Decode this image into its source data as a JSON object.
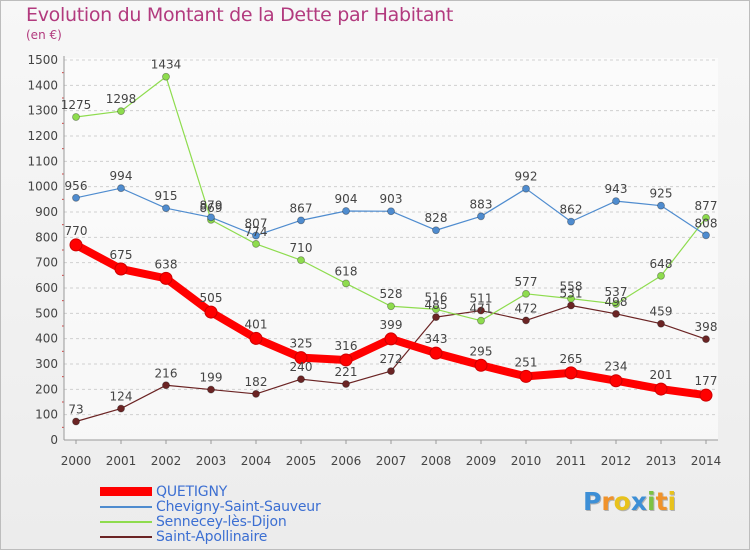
{
  "chart_data": {
    "type": "line",
    "title": "Evolution du Montant de la Dette par Habitant",
    "unit_label": "(en €)",
    "x": [
      "2000",
      "2001",
      "2002",
      "2003",
      "2004",
      "2005",
      "2006",
      "2007",
      "2008",
      "2009",
      "2010",
      "2011",
      "2012",
      "2013",
      "2014"
    ],
    "ylim": [
      0,
      1500
    ],
    "yticks": [
      0,
      100,
      200,
      300,
      400,
      500,
      600,
      700,
      800,
      900,
      1000,
      1100,
      1200,
      1300,
      1400,
      1500
    ],
    "grid": "horizontal dashed",
    "legend_position": "bottom-left",
    "series": [
      {
        "name": "QUETIGNY",
        "color": "#ff0000",
        "values": [
          770,
          675,
          638,
          505,
          401,
          325,
          316,
          399,
          343,
          295,
          251,
          265,
          234,
          201,
          177
        ],
        "labels": [
          "770",
          "675",
          "638",
          "505",
          "401",
          "325",
          "316",
          "399",
          "343",
          "295",
          "251",
          "265",
          "234",
          "201",
          "177"
        ]
      },
      {
        "name": "Chevigny-Saint-Sauveur",
        "color": "#4f8ccf",
        "values": [
          956,
          994,
          915,
          879,
          807,
          867,
          904,
          903,
          828,
          883,
          992,
          862,
          943,
          925,
          808
        ],
        "labels": [
          "956",
          "994",
          "915",
          "879",
          "807",
          "867",
          "904",
          "903",
          "828",
          "883",
          "992",
          "862",
          "943",
          "925",
          "808"
        ]
      },
      {
        "name": "Sennecey-lès-Dijon",
        "color": "#8edc4e",
        "values": [
          1275,
          1298,
          1434,
          869,
          774,
          710,
          618,
          528,
          516,
          471,
          577,
          558,
          537,
          648,
          877
        ],
        "labels": [
          "1275",
          "1298",
          "1434",
          "869",
          "774",
          "710",
          "618",
          "528",
          "516",
          "471",
          "577",
          "558",
          "537",
          "648",
          "877"
        ]
      },
      {
        "name": "Saint-Apollinaire",
        "color": "#6b2424",
        "values": [
          73,
          124,
          216,
          199,
          182,
          240,
          221,
          272,
          485,
          511,
          472,
          531,
          498,
          459,
          398
        ],
        "labels": [
          "73",
          "124",
          "216",
          "199",
          "182",
          "240",
          "221",
          "272",
          "485",
          "511",
          "472",
          "531",
          "498",
          "459",
          "398"
        ]
      }
    ]
  },
  "logo": {
    "letters": [
      "P",
      "r",
      "o",
      "x",
      "i",
      "t",
      "i"
    ],
    "colors": [
      "#3d8fd6",
      "#f0922a",
      "#e8c21c",
      "#3d8fd6",
      "#7cc243",
      "#f0922a",
      "#e8c21c"
    ]
  }
}
